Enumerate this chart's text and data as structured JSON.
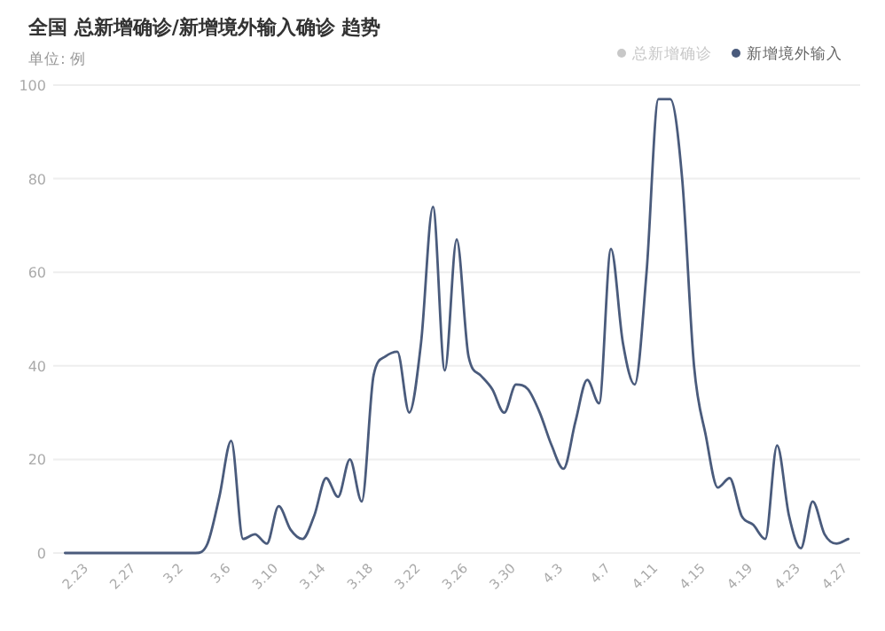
{
  "chart_data": {
    "type": "line",
    "title": "全国 总新增确诊/新增境外输入确诊 趋势",
    "subtitle": "单位: 例",
    "x": [
      "--02-21",
      "--02-22",
      "--02-23",
      "--02-24",
      "--02-25",
      "--02-26",
      "--02-27",
      "--02-28",
      "--02-29",
      "--03-01",
      "--03-02",
      "--03-03",
      "--03-04",
      "--03-05",
      "--03-06",
      "--03-07",
      "--03-08",
      "--03-09",
      "--03-10",
      "--03-11",
      "--03-12",
      "--03-13",
      "--03-14",
      "--03-15",
      "--03-16",
      "--03-17",
      "--03-18",
      "--03-19",
      "--03-20",
      "--03-21",
      "--03-22",
      "--03-23",
      "--03-24",
      "--03-25",
      "--03-26",
      "--03-27",
      "--03-28",
      "--03-29",
      "--03-30",
      "--03-31",
      "--04-01",
      "--04-02",
      "--04-03",
      "--04-04",
      "--04-05",
      "--04-06",
      "--04-07",
      "--04-08",
      "--04-09",
      "--04-10",
      "--04-11",
      "--04-12",
      "--04-13",
      "--04-14",
      "--04-15",
      "--04-16",
      "--04-17",
      "--04-18",
      "--04-19",
      "--04-20",
      "--04-21",
      "--04-22",
      "--04-23",
      "--04-24",
      "--04-25",
      "--04-26",
      "--04-27"
    ],
    "series": [
      {
        "name": "总新增确诊",
        "color": "#c8c8c8",
        "values": [
          null,
          null,
          null,
          null,
          null,
          null,
          null,
          null,
          null,
          null,
          null,
          null,
          null,
          null,
          null,
          null,
          null,
          null,
          null,
          null,
          null,
          null,
          null,
          null,
          null,
          null,
          null,
          null,
          null,
          null,
          null,
          null,
          null,
          null,
          null,
          null,
          null,
          null,
          null,
          null,
          null,
          null,
          null,
          null,
          null,
          null,
          null,
          null,
          null,
          null,
          null,
          null,
          null,
          null,
          null,
          null,
          null,
          null,
          null,
          null,
          null,
          null,
          null,
          null,
          null,
          null,
          null
        ]
      },
      {
        "name": "新增境外输入",
        "color": "#4a5b7c",
        "values": [
          0,
          0,
          0,
          0,
          0,
          0,
          0,
          0,
          0,
          0,
          0,
          0,
          2,
          12,
          24,
          3,
          4,
          2,
          10,
          5,
          3,
          8,
          16,
          12,
          20,
          11,
          38,
          42,
          43,
          30,
          45,
          74,
          39,
          67,
          42,
          38,
          35,
          30,
          36,
          35,
          30,
          23,
          18,
          28,
          37,
          32,
          65,
          45,
          36,
          60,
          97,
          97,
          80,
          40,
          25,
          14,
          16,
          8,
          6,
          3,
          23,
          8,
          1,
          11,
          4,
          2,
          3
        ]
      }
    ],
    "xlim": [
      "--02-20",
      "--04-28"
    ],
    "xticks": [
      {
        "value": "--02-23",
        "label": "2.23"
      },
      {
        "value": "--02-27",
        "label": "2.27"
      },
      {
        "value": "--03-02",
        "label": "3.2"
      },
      {
        "value": "--03-06",
        "label": "3.6"
      },
      {
        "value": "--03-10",
        "label": "3.10"
      },
      {
        "value": "--03-14",
        "label": "3.14"
      },
      {
        "value": "--03-18",
        "label": "3.18"
      },
      {
        "value": "--03-22",
        "label": "3.22"
      },
      {
        "value": "--03-26",
        "label": "3.26"
      },
      {
        "value": "--03-30",
        "label": "3.30"
      },
      {
        "value": "--04-03",
        "label": "4.3"
      },
      {
        "value": "--04-07",
        "label": "4.7"
      },
      {
        "value": "--04-11",
        "label": "4.11"
      },
      {
        "value": "--04-15",
        "label": "4.15"
      },
      {
        "value": "--04-19",
        "label": "4.19"
      },
      {
        "value": "--04-23",
        "label": "4.23"
      },
      {
        "value": "--04-27",
        "label": "4.27"
      }
    ],
    "ylim": [
      0,
      100
    ],
    "yticks": [
      0,
      20,
      40,
      60,
      80,
      100
    ],
    "grid": "y",
    "legend": "top right",
    "marker": "none",
    "line_style": "solid"
  }
}
